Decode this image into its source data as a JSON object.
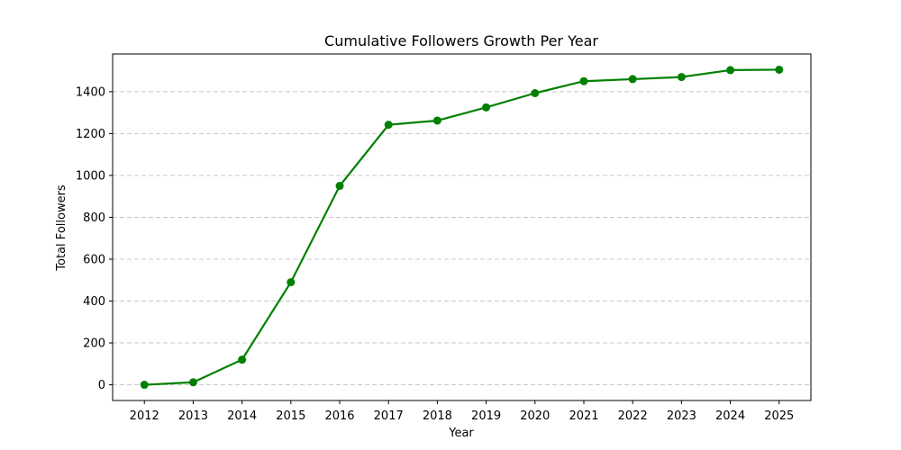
{
  "chart_data": {
    "type": "line",
    "title": "Cumulative Followers Growth Per Year",
    "xlabel": "Year",
    "ylabel": "Total Followers",
    "x": [
      2012,
      2013,
      2014,
      2015,
      2016,
      2017,
      2018,
      2019,
      2020,
      2021,
      2022,
      2023,
      2024,
      2025
    ],
    "series": [
      {
        "values": [
          0,
          12,
          120,
          490,
          950,
          1242,
          1262,
          1325,
          1393,
          1450,
          1460,
          1470,
          1503,
          1505
        ],
        "color": "#008000",
        "marker": "circle"
      }
    ],
    "xlim": [
      2011.35,
      2025.65
    ],
    "ylim": [
      -75,
      1580
    ],
    "yticks": [
      0,
      200,
      400,
      600,
      800,
      1000,
      1200,
      1400
    ],
    "grid": {
      "y": true,
      "x": false,
      "style": "dashed"
    },
    "legend": false
  }
}
